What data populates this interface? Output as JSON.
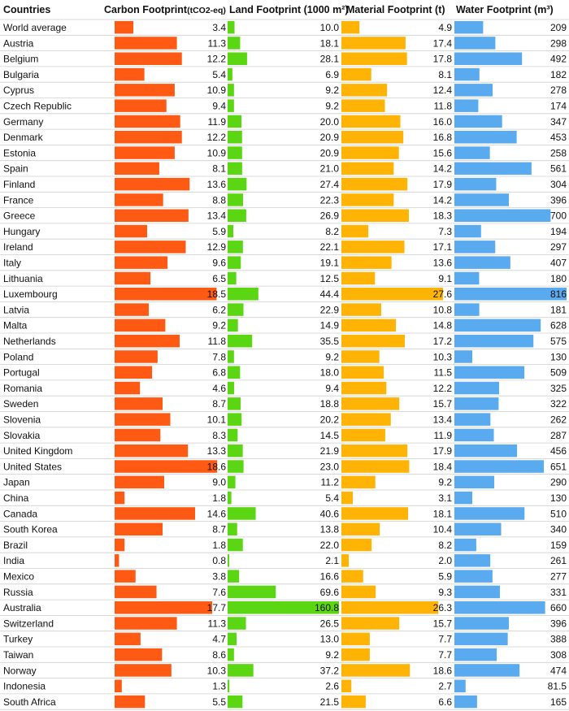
{
  "chart_data": {
    "type": "bar",
    "title": "",
    "headers": {
      "countries": "Countries",
      "carbon": "Carbon Footprint",
      "carbon_unit": "(tCO2-eq)",
      "land": "Land Footprint (1000 m²)",
      "material": "Material Footprint (t)",
      "water": "Water Footprint (m³)"
    },
    "categories": [
      "World average",
      "Austria",
      "Belgium",
      "Bulgaria",
      "Cyprus",
      "Czech Republic",
      "Germany",
      "Denmark",
      "Estonia",
      "Spain",
      "Finland",
      "France",
      "Greece",
      "Hungary",
      "Ireland",
      "Italy",
      "Lithuania",
      "Luxembourg",
      "Latvia",
      "Malta",
      "Netherlands",
      "Poland",
      "Portugal",
      "Romania",
      "Sweden",
      "Slovenia",
      "Slovakia",
      "United Kingdom",
      "United States",
      "Japan",
      "China",
      "Canada",
      "South Korea",
      "Brazil",
      "India",
      "Mexico",
      "Russia",
      "Australia",
      "Switzerland",
      "Turkey",
      "Taiwan",
      "Norway",
      "Indonesia",
      "South Africa"
    ],
    "series": [
      {
        "name": "Carbon Footprint (tCO2-eq)",
        "color": "#ff5a14",
        "labels": [
          "3.4",
          "11.3",
          "12.2",
          "5.4",
          "10.9",
          "9.4",
          "11.9",
          "12.2",
          "10.9",
          "8.1",
          "13.6",
          "8.8",
          "13.4",
          "5.9",
          "12.9",
          "9.6",
          "6.5",
          "18.5",
          "6.2",
          "9.2",
          "11.8",
          "7.8",
          "6.8",
          "4.6",
          "8.7",
          "10.1",
          "8.3",
          "13.3",
          "18.6",
          "9.0",
          "1.8",
          "14.6",
          "8.7",
          "1.8",
          "0.8",
          "3.8",
          "7.6",
          "17.7",
          "11.3",
          "4.7",
          "8.6",
          "10.3",
          "1.3",
          "5.5"
        ]
      },
      {
        "name": "Land Footprint (1000 m²)",
        "color": "#5ad612",
        "labels": [
          "10.0",
          "18.1",
          "28.1",
          "6.9",
          "9.2",
          "9.2",
          "20.0",
          "20.9",
          "20.9",
          "21.0",
          "27.4",
          "22.3",
          "26.9",
          "8.2",
          "22.1",
          "19.1",
          "12.5",
          "44.4",
          "22.9",
          "14.9",
          "35.5",
          "9.2",
          "18.0",
          "9.4",
          "18.8",
          "20.2",
          "14.5",
          "21.9",
          "23.0",
          "11.2",
          "5.4",
          "40.6",
          "13.8",
          "22.0",
          "2.1",
          "16.6",
          "69.6",
          "160.8",
          "26.5",
          "13.0",
          "9.2",
          "37.2",
          "2.6",
          "21.5"
        ]
      },
      {
        "name": "Material Footprint (t)",
        "color": "#ffb405",
        "labels": [
          "4.9",
          "17.4",
          "17.8",
          "8.1",
          "12.4",
          "11.8",
          "16.0",
          "16.8",
          "15.6",
          "14.2",
          "17.9",
          "14.2",
          "18.3",
          "7.3",
          "17.1",
          "13.6",
          "9.1",
          "27.6",
          "10.8",
          "14.8",
          "17.2",
          "10.3",
          "11.5",
          "12.2",
          "15.7",
          "13.4",
          "11.9",
          "17.9",
          "18.4",
          "9.2",
          "3.1",
          "18.1",
          "10.4",
          "8.2",
          "2.0",
          "5.9",
          "9.3",
          "26.3",
          "15.7",
          "7.7",
          "7.7",
          "18.6",
          "2.7",
          "6.6"
        ]
      },
      {
        "name": "Water Footprint (m³)",
        "color": "#5aaaf0",
        "labels": [
          "209",
          "298",
          "492",
          "182",
          "278",
          "174",
          "347",
          "453",
          "258",
          "561",
          "304",
          "396",
          "700",
          "194",
          "297",
          "407",
          "180",
          "816",
          "181",
          "628",
          "575",
          "130",
          "509",
          "325",
          "322",
          "262",
          "287",
          "456",
          "651",
          "290",
          "130",
          "510",
          "340",
          "159",
          "261",
          "277",
          "331",
          "660",
          "396",
          "388",
          "308",
          "474",
          "81.5",
          "165"
        ]
      }
    ]
  }
}
